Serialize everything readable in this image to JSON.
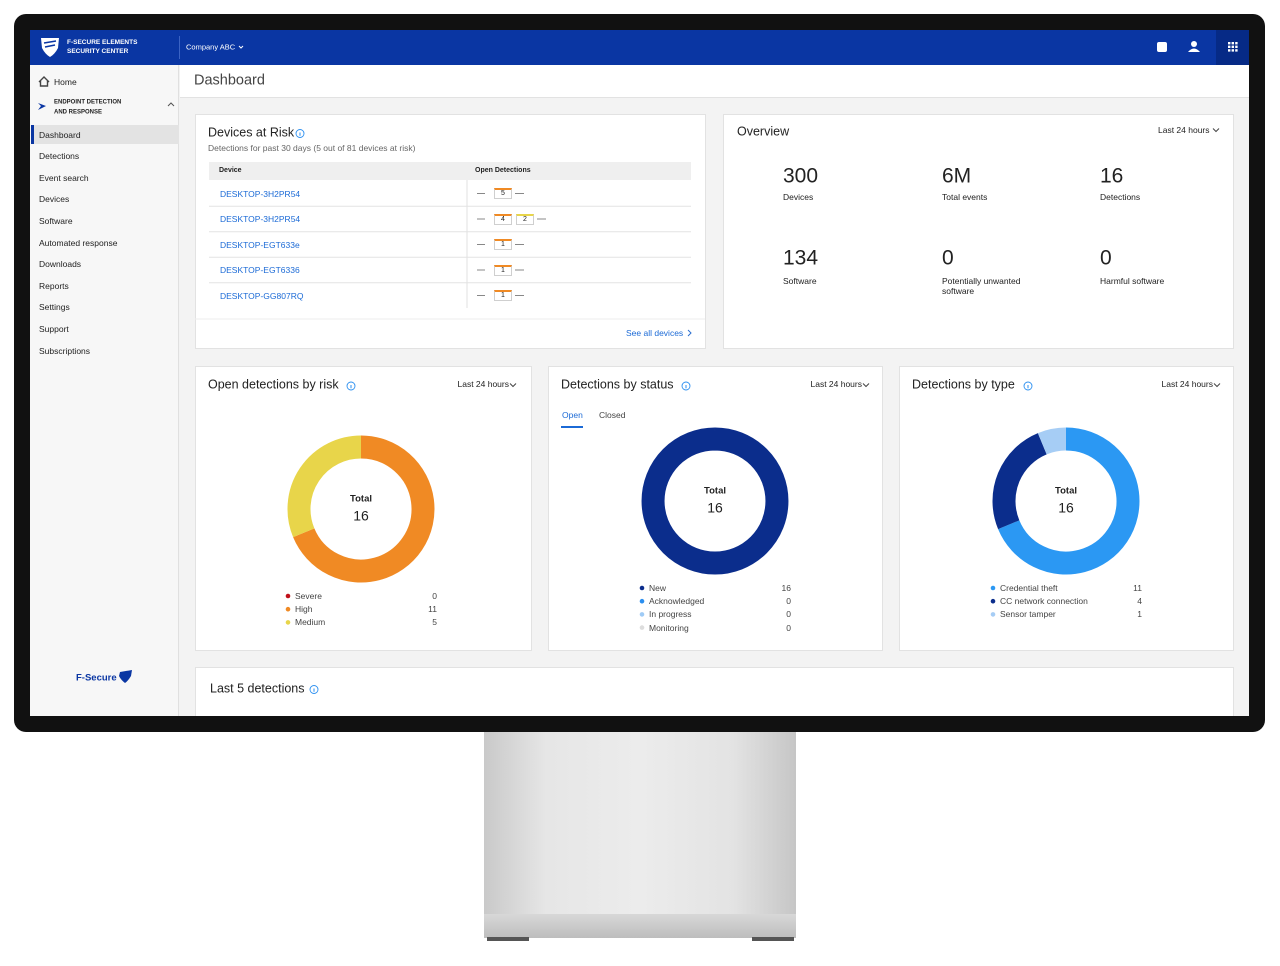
{
  "header": {
    "brand": [
      "F-SECURE ELEMENTS",
      "SECURITY CENTER"
    ],
    "company": "Company ABC"
  },
  "sidebar": {
    "home": "Home",
    "section": [
      "ENDPOINT DETECTION",
      "AND RESPONSE"
    ],
    "items": [
      "Dashboard",
      "Detections",
      "Event search",
      "Devices",
      "Software",
      "Automated response",
      "Downloads",
      "Reports",
      "Settings",
      "Support",
      "Subscriptions"
    ],
    "logo": "F-Secure"
  },
  "page_title": "Dashboard",
  "devices_at_risk": {
    "title": "Devices at Risk",
    "subtitle": "Detections for past 30 days (5 out of 81 devices at risk)",
    "columns": [
      "Device",
      "Open Detections"
    ],
    "rows": [
      {
        "device": "DESKTOP-3H2PR54",
        "detections": [
          {
            "value": 5,
            "color": "#f08a24"
          }
        ]
      },
      {
        "device": "DESKTOP-3H2PR54",
        "detections": [
          {
            "value": 4,
            "color": "#f08a24"
          },
          {
            "value": 2,
            "color": "#e8d54a"
          }
        ]
      },
      {
        "device": "DESKTOP-EGT633e",
        "detections": [
          {
            "value": 1,
            "color": "#f08a24"
          }
        ]
      },
      {
        "device": "DESKTOP-EGT6336",
        "detections": [
          {
            "value": 1,
            "color": "#f08a24"
          }
        ]
      },
      {
        "device": "DESKTOP-GG807RQ",
        "detections": [
          {
            "value": 1,
            "color": "#f08a24"
          }
        ]
      }
    ],
    "link": "See all devices"
  },
  "overview": {
    "title": "Overview",
    "period": "Last 24 hours",
    "stats": [
      {
        "value": 300,
        "label": "Devices"
      },
      {
        "value": "6M",
        "label": "Total events"
      },
      {
        "value": 16,
        "label": "Detections"
      },
      {
        "value": 134,
        "label": "Software"
      },
      {
        "value": 0,
        "label": "Potentially unwanted software"
      },
      {
        "value": 0,
        "label": "Harmful software"
      }
    ]
  },
  "chart_data": [
    {
      "type": "donut",
      "title": "Open detections by risk",
      "period": "Last 24 hours",
      "center_label": "Total",
      "total": 16,
      "categories": [
        "Severe",
        "High",
        "Medium"
      ],
      "values": [
        0,
        11,
        5
      ],
      "colors": [
        "#c0111a",
        "#f08a24",
        "#e8d54a"
      ]
    },
    {
      "type": "donut",
      "title": "Detections by status",
      "period": "Last 24 hours",
      "tabs": [
        "Open",
        "Closed"
      ],
      "center_label": "Total",
      "total": 16,
      "categories": [
        "New",
        "Acknowledged",
        "In progress",
        "Monitoring"
      ],
      "values": [
        16,
        0,
        0,
        0
      ],
      "colors": [
        "#0b2d8c",
        "#2b8ff0",
        "#9fcbf6",
        "#dddddd"
      ]
    },
    {
      "type": "donut",
      "title": "Detections by type",
      "period": "Last 24 hours",
      "center_label": "Total",
      "total": 16,
      "categories": [
        "Credential theft",
        "CC network connection",
        "Sensor tamper"
      ],
      "values": [
        11,
        4,
        1
      ],
      "colors": [
        "#2b98f3",
        "#0b2d8c",
        "#a6cdf5"
      ]
    }
  ],
  "last_detections": {
    "title": "Last 5 detections"
  }
}
